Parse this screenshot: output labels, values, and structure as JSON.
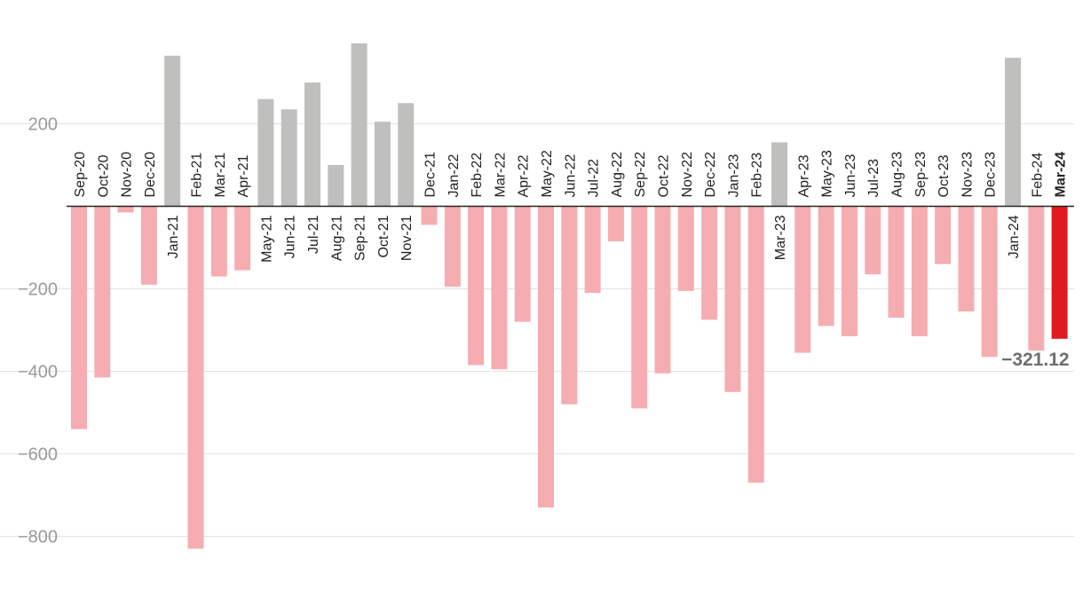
{
  "chart_data": {
    "type": "bar",
    "title": "",
    "xlabel": "",
    "ylabel": "",
    "ylim": [
      -880,
      390
    ],
    "yticks": [
      200,
      -200,
      -400,
      -600,
      -800
    ],
    "ytick_labels": [
      "200",
      "−200",
      "−400",
      "−600",
      "−800"
    ],
    "grid": true,
    "legend": "none",
    "categories": [
      "Sep-20",
      "Oct-20",
      "Nov-20",
      "Dec-20",
      "Jan-21",
      "Feb-21",
      "Mar-21",
      "Apr-21",
      "May-21",
      "Jun-21",
      "Jul-21",
      "Aug-21",
      "Sep-21",
      "Oct-21",
      "Nov-21",
      "Dec-21",
      "Jan-22",
      "Feb-22",
      "Mar-22",
      "Apr-22",
      "May-22",
      "Jun-22",
      "Jul-22",
      "Aug-22",
      "Sep-22",
      "Oct-22",
      "Nov-22",
      "Dec-22",
      "Jan-23",
      "Feb-23",
      "Mar-23",
      "Apr-23",
      "May-23",
      "Jun-23",
      "Jul-23",
      "Aug-23",
      "Sep-23",
      "Oct-23",
      "Nov-23",
      "Dec-23",
      "Jan-24",
      "Feb-24",
      "Mar-24"
    ],
    "values": [
      -540,
      -415,
      -15,
      -190,
      365,
      -830,
      -170,
      -155,
      260,
      235,
      300,
      100,
      395,
      205,
      250,
      -45,
      -195,
      -385,
      -395,
      -280,
      -730,
      -480,
      -210,
      -85,
      -490,
      -405,
      -205,
      -275,
      -450,
      -670,
      155,
      -355,
      -290,
      -315,
      -165,
      -270,
      -315,
      -140,
      -255,
      -365,
      360,
      -350,
      -321.12
    ],
    "highlight_index": 42,
    "highlight_label": "−321.12",
    "colors": {
      "positive": "#bfbfbd",
      "negative": "#f5adb1",
      "highlight": "#e01a1f",
      "grid": "#e2e2e2",
      "baseline": "#222222"
    }
  }
}
